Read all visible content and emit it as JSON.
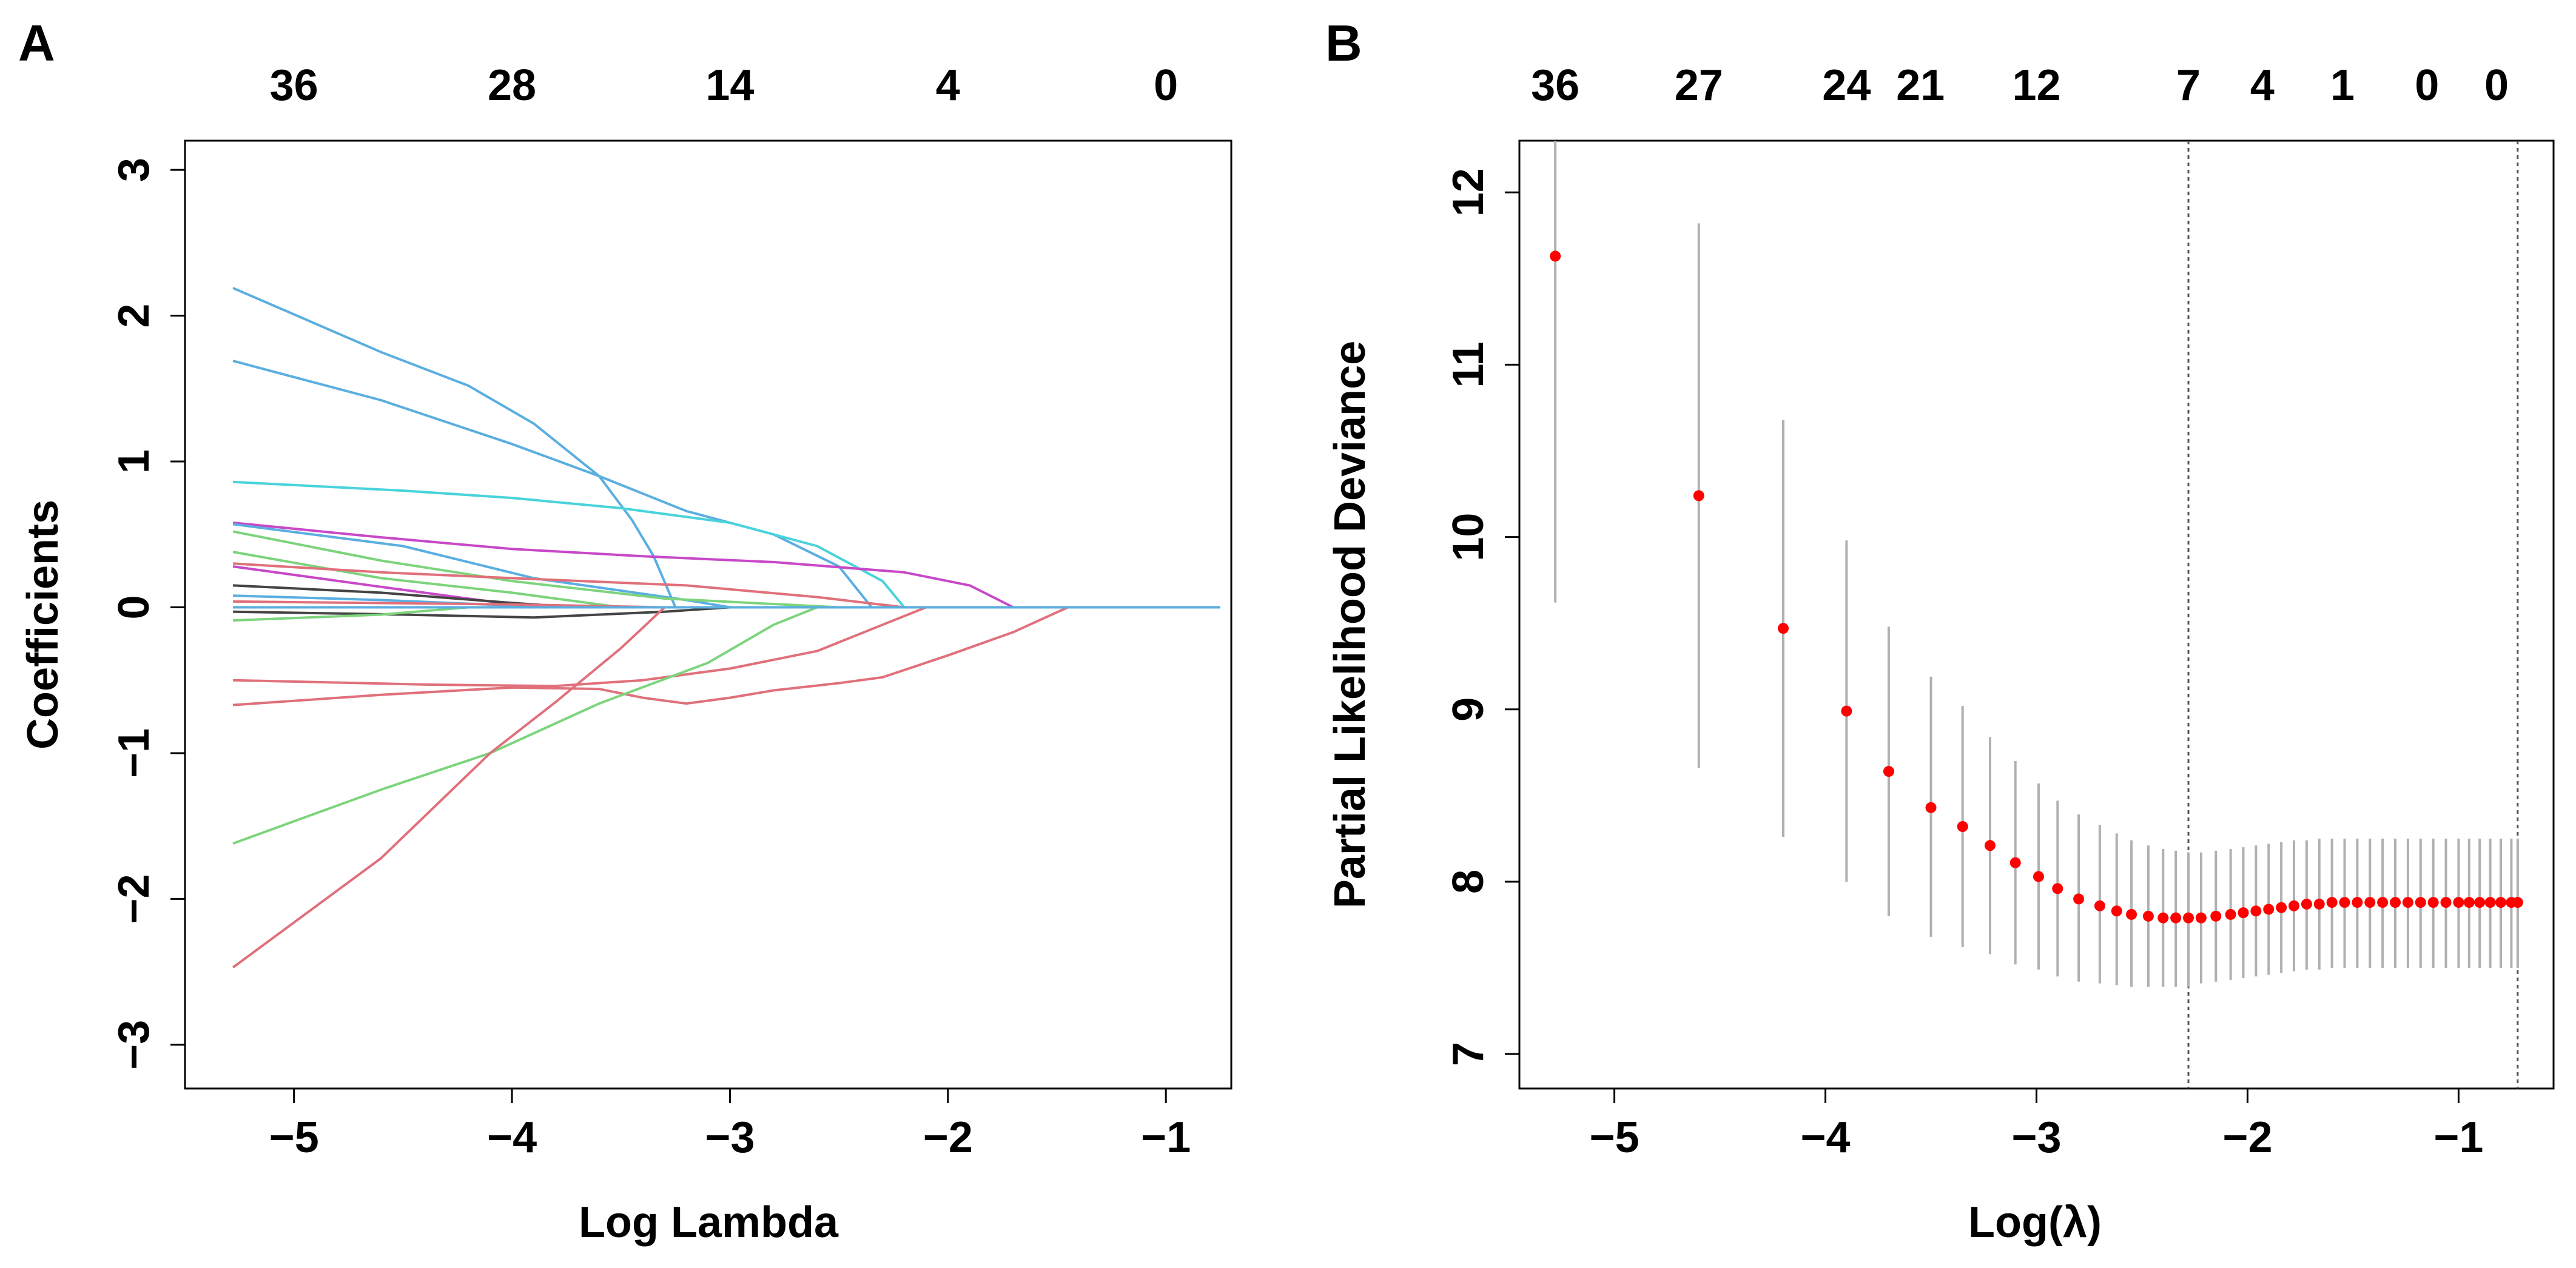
{
  "chart_data": [
    {
      "panel": "A",
      "type": "line",
      "title": "",
      "xlabel": "Log Lambda",
      "ylabel": "Coefficients",
      "xlim": [
        -5.5,
        -0.7
      ],
      "ylim": [
        -3.3,
        3.2
      ],
      "xticks": [
        -5,
        -4,
        -3,
        -2,
        -1
      ],
      "xtick_labels": [
        "−5",
        "−4",
        "−3",
        "−2",
        "−1"
      ],
      "yticks": [
        -3,
        -2,
        -1,
        0,
        1,
        2,
        3
      ],
      "ytick_labels": [
        "−3",
        "−2",
        "−1",
        "0",
        "1",
        "2",
        "3"
      ],
      "top_axis": {
        "ticks": [
          -5,
          -4,
          -3,
          -2,
          -1
        ],
        "labels": [
          "36",
          "28",
          "14",
          "4",
          "0"
        ]
      },
      "grid": false,
      "series": [
        {
          "name": "coef-1",
          "color": "#5aaee0",
          "points": [
            [
              -5.28,
              2.19
            ],
            [
              -4.6,
              1.75
            ],
            [
              -4.2,
              1.52
            ],
            [
              -3.9,
              1.26
            ],
            [
              -3.6,
              0.9
            ],
            [
              -3.45,
              0.6
            ],
            [
              -3.35,
              0.35
            ],
            [
              -3.25,
              0.0
            ]
          ]
        },
        {
          "name": "coef-2",
          "color": "#5aaee0",
          "points": [
            [
              -5.28,
              1.69
            ],
            [
              -4.6,
              1.42
            ],
            [
              -4.0,
              1.12
            ],
            [
              -3.6,
              0.9
            ],
            [
              -3.2,
              0.66
            ],
            [
              -2.8,
              0.5
            ],
            [
              -2.5,
              0.28
            ],
            [
              -2.35,
              0.0
            ]
          ]
        },
        {
          "name": "coef-3",
          "color": "#49d3db",
          "points": [
            [
              -5.28,
              0.86
            ],
            [
              -4.5,
              0.8
            ],
            [
              -4.0,
              0.75
            ],
            [
              -3.5,
              0.68
            ],
            [
              -3.0,
              0.58
            ],
            [
              -2.6,
              0.42
            ],
            [
              -2.3,
              0.18
            ],
            [
              -2.2,
              0.0
            ]
          ]
        },
        {
          "name": "coef-4",
          "color": "#c848c8",
          "points": [
            [
              -5.28,
              0.58
            ],
            [
              -4.6,
              0.48
            ],
            [
              -4.0,
              0.4
            ],
            [
              -3.4,
              0.35
            ],
            [
              -2.8,
              0.31
            ],
            [
              -2.2,
              0.24
            ],
            [
              -1.9,
              0.15
            ],
            [
              -1.7,
              0.0
            ]
          ]
        },
        {
          "name": "coef-5",
          "color": "#5aaee0",
          "points": [
            [
              -5.28,
              0.57
            ],
            [
              -4.5,
              0.42
            ],
            [
              -3.9,
              0.2
            ],
            [
              -3.2,
              0.05
            ],
            [
              -3.0,
              0.0
            ]
          ]
        },
        {
          "name": "coef-6",
          "color": "#7cd47c",
          "points": [
            [
              -5.28,
              0.52
            ],
            [
              -4.6,
              0.32
            ],
            [
              -4.0,
              0.18
            ],
            [
              -3.3,
              0.06
            ],
            [
              -2.5,
              0.0
            ]
          ]
        },
        {
          "name": "coef-7",
          "color": "#7cd47c",
          "points": [
            [
              -5.28,
              0.38
            ],
            [
              -4.6,
              0.2
            ],
            [
              -4.0,
              0.1
            ],
            [
              -3.5,
              0.0
            ]
          ]
        },
        {
          "name": "coef-8",
          "color": "#e0707a",
          "points": [
            [
              -5.28,
              0.3
            ],
            [
              -4.6,
              0.24
            ],
            [
              -4.0,
              0.2
            ],
            [
              -3.2,
              0.15
            ],
            [
              -2.6,
              0.07
            ],
            [
              -2.2,
              0.0
            ]
          ]
        },
        {
          "name": "coef-9",
          "color": "#c848c8",
          "points": [
            [
              -5.28,
              0.28
            ],
            [
              -4.6,
              0.14
            ],
            [
              -4.1,
              0.04
            ],
            [
              -3.9,
              0.0
            ]
          ]
        },
        {
          "name": "coef-10",
          "color": "#444444",
          "points": [
            [
              -5.28,
              0.15
            ],
            [
              -4.6,
              0.1
            ],
            [
              -4.0,
              0.03
            ],
            [
              -3.7,
              0.0
            ]
          ]
        },
        {
          "name": "coef-11",
          "color": "#5aaee0",
          "points": [
            [
              -5.28,
              0.08
            ],
            [
              -4.6,
              0.05
            ],
            [
              -3.8,
              0.0
            ]
          ]
        },
        {
          "name": "coef-12",
          "color": "#e0707a",
          "points": [
            [
              -5.28,
              0.04
            ],
            [
              -4.0,
              0.02
            ],
            [
              -3.3,
              0.0
            ]
          ]
        },
        {
          "name": "coef-13",
          "color": "#444444",
          "points": [
            [
              -5.28,
              -0.03
            ],
            [
              -4.5,
              -0.05
            ],
            [
              -3.9,
              -0.07
            ],
            [
              -3.3,
              -0.03
            ],
            [
              -3.0,
              0.0
            ]
          ]
        },
        {
          "name": "coef-14",
          "color": "#7cd47c",
          "points": [
            [
              -5.28,
              -0.09
            ],
            [
              -4.6,
              -0.05
            ],
            [
              -4.2,
              0.0
            ]
          ]
        },
        {
          "name": "coef-15",
          "color": "#e0707a",
          "points": [
            [
              -5.28,
              -0.5
            ],
            [
              -4.4,
              -0.53
            ],
            [
              -3.8,
              -0.54
            ],
            [
              -3.4,
              -0.5
            ],
            [
              -3.0,
              -0.42
            ],
            [
              -2.6,
              -0.3
            ],
            [
              -2.3,
              -0.12
            ],
            [
              -2.1,
              0.0
            ]
          ]
        },
        {
          "name": "coef-16",
          "color": "#e0707a",
          "points": [
            [
              -5.28,
              -0.67
            ],
            [
              -4.6,
              -0.6
            ],
            [
              -4.0,
              -0.55
            ],
            [
              -3.6,
              -0.56
            ],
            [
              -3.4,
              -0.62
            ],
            [
              -3.2,
              -0.66
            ],
            [
              -3.0,
              -0.62
            ],
            [
              -2.8,
              -0.57
            ],
            [
              -2.5,
              -0.52
            ],
            [
              -2.3,
              -0.48
            ],
            [
              -2.0,
              -0.33
            ],
            [
              -1.7,
              -0.17
            ],
            [
              -1.45,
              0.0
            ]
          ]
        },
        {
          "name": "coef-17",
          "color": "#7cd47c",
          "points": [
            [
              -5.28,
              -1.62
            ],
            [
              -4.6,
              -1.25
            ],
            [
              -4.1,
              -1.0
            ],
            [
              -3.6,
              -0.66
            ],
            [
              -3.1,
              -0.38
            ],
            [
              -2.8,
              -0.12
            ],
            [
              -2.6,
              0.0
            ]
          ]
        },
        {
          "name": "coef-18",
          "color": "#e0707a",
          "points": [
            [
              -5.28,
              -2.47
            ],
            [
              -4.6,
              -1.72
            ],
            [
              -4.1,
              -1.0
            ],
            [
              -3.8,
              -0.65
            ],
            [
              -3.5,
              -0.28
            ],
            [
              -3.35,
              -0.07
            ],
            [
              -3.3,
              0.0
            ]
          ]
        },
        {
          "name": "zero-line",
          "color": "#5aaee0",
          "points": [
            [
              -5.28,
              0.0
            ],
            [
              -0.75,
              0.0
            ]
          ]
        }
      ]
    },
    {
      "panel": "B",
      "type": "scatter",
      "title": "",
      "xlabel": "Log(λ)",
      "ylabel": "Partial Likelihood Deviance",
      "xlim": [
        -5.45,
        -0.55
      ],
      "ylim": [
        6.8,
        12.3
      ],
      "xticks": [
        -5,
        -4,
        -3,
        -2,
        -1
      ],
      "xtick_labels": [
        "−5",
        "−4",
        "−3",
        "−2",
        "−1"
      ],
      "yticks": [
        7,
        8,
        9,
        10,
        11,
        12
      ],
      "ytick_labels": [
        "7",
        "8",
        "9",
        "10",
        "11",
        "12"
      ],
      "top_axis": {
        "ticks": [
          -5.28,
          -4.6,
          -3.9,
          -3.55,
          -3.0,
          -2.28,
          -1.93,
          -1.55,
          -1.15,
          -0.82
        ],
        "labels": [
          "36",
          "27",
          "24",
          "21",
          "12",
          "7",
          "4",
          "1",
          "0",
          "0"
        ]
      },
      "grid": false,
      "vlines": [
        -2.28,
        -0.72
      ],
      "x": [
        -5.28,
        -4.6,
        -4.2,
        -3.9,
        -3.7,
        -3.5,
        -3.35,
        -3.22,
        -3.1,
        -2.99,
        -2.9,
        -2.8,
        -2.7,
        -2.62,
        -2.55,
        -2.47,
        -2.4,
        -2.34,
        -2.28,
        -2.22,
        -2.15,
        -2.08,
        -2.02,
        -1.96,
        -1.9,
        -1.84,
        -1.78,
        -1.72,
        -1.66,
        -1.6,
        -1.54,
        -1.48,
        -1.42,
        -1.36,
        -1.3,
        -1.24,
        -1.18,
        -1.12,
        -1.06,
        -1.0,
        -0.95,
        -0.9,
        -0.85,
        -0.8,
        -0.75,
        -0.72
      ],
      "y": [
        11.63,
        10.24,
        9.47,
        8.99,
        8.64,
        8.43,
        8.32,
        8.21,
        8.11,
        8.03,
        7.96,
        7.9,
        7.86,
        7.83,
        7.81,
        7.8,
        7.79,
        7.79,
        7.79,
        7.79,
        7.8,
        7.81,
        7.82,
        7.83,
        7.84,
        7.85,
        7.86,
        7.87,
        7.87,
        7.88,
        7.88,
        7.88,
        7.88,
        7.88,
        7.88,
        7.88,
        7.88,
        7.88,
        7.88,
        7.88,
        7.88,
        7.88,
        7.88,
        7.88,
        7.88,
        7.88
      ],
      "upper": [
        12.3,
        11.82,
        10.68,
        9.98,
        9.48,
        9.19,
        9.02,
        8.84,
        8.7,
        8.57,
        8.47,
        8.39,
        8.33,
        8.28,
        8.24,
        8.21,
        8.19,
        8.18,
        8.17,
        8.17,
        8.18,
        8.19,
        8.2,
        8.21,
        8.22,
        8.23,
        8.24,
        8.24,
        8.25,
        8.25,
        8.25,
        8.25,
        8.25,
        8.25,
        8.25,
        8.25,
        8.25,
        8.25,
        8.25,
        8.25,
        8.25,
        8.25,
        8.25,
        8.25,
        8.25,
        8.25
      ],
      "lower": [
        9.62,
        8.66,
        8.26,
        8.0,
        7.8,
        7.68,
        7.62,
        7.58,
        7.52,
        7.49,
        7.45,
        7.42,
        7.41,
        7.4,
        7.39,
        7.39,
        7.39,
        7.39,
        7.39,
        7.41,
        7.42,
        7.43,
        7.44,
        7.45,
        7.46,
        7.47,
        7.48,
        7.49,
        7.49,
        7.5,
        7.5,
        7.5,
        7.5,
        7.5,
        7.5,
        7.5,
        7.5,
        7.5,
        7.5,
        7.5,
        7.5,
        7.5,
        7.5,
        7.5,
        7.5,
        7.5
      ]
    }
  ],
  "panel_labels": {
    "a": "A",
    "b": "B"
  },
  "colors": {
    "points": "#ff0000",
    "errorbars": "#b0b0b0",
    "axis": "#000000"
  }
}
